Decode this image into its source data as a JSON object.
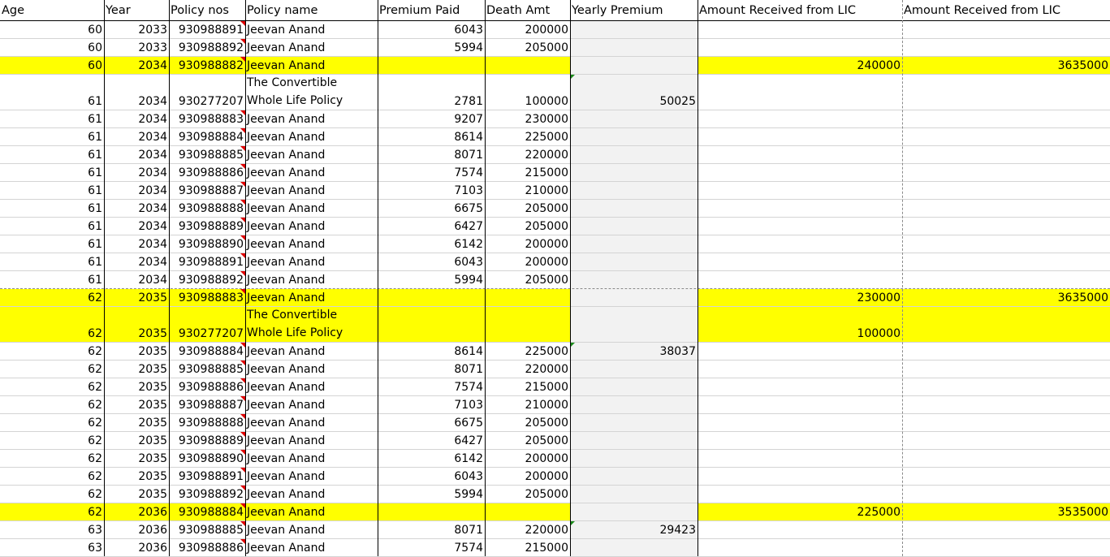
{
  "headers": [
    "Age",
    "Year",
    "Policy nos",
    "Policy name",
    "Premium Paid",
    "Death Amt",
    "Yearly Premium",
    "Amount Received from LIC",
    "Amount Received from LIC"
  ],
  "rows": [
    {
      "age": "60",
      "year": "2033",
      "policy": "930988891",
      "name": "Jeevan Anand",
      "premium": "6043",
      "death": "200000",
      "yearly": "",
      "rec1": "",
      "rec2": "",
      "highlight": false,
      "comment": true
    },
    {
      "age": "60",
      "year": "2033",
      "policy": "930988892",
      "name": "Jeevan Anand",
      "premium": "5994",
      "death": "205000",
      "yearly": "",
      "rec1": "",
      "rec2": "",
      "highlight": false,
      "comment": true
    },
    {
      "age": "60",
      "year": "2034",
      "policy": "930988882",
      "name": "Jeevan Anand",
      "premium": "",
      "death": "",
      "yearly": "",
      "rec1": "240000",
      "rec2": "3635000",
      "highlight": true,
      "comment": true
    },
    {
      "age": "61",
      "year": "2034",
      "policy": "930277207",
      "name": "The Convertible Whole Life Policy",
      "premium": "2781",
      "death": "100000",
      "yearly": "50025",
      "rec1": "",
      "rec2": "",
      "highlight": false,
      "comment": false,
      "tall": true,
      "err": true
    },
    {
      "age": "61",
      "year": "2034",
      "policy": "930988883",
      "name": "Jeevan Anand",
      "premium": "9207",
      "death": "230000",
      "yearly": "",
      "rec1": "",
      "rec2": "",
      "highlight": false,
      "comment": true
    },
    {
      "age": "61",
      "year": "2034",
      "policy": "930988884",
      "name": "Jeevan Anand",
      "premium": "8614",
      "death": "225000",
      "yearly": "",
      "rec1": "",
      "rec2": "",
      "highlight": false,
      "comment": true
    },
    {
      "age": "61",
      "year": "2034",
      "policy": "930988885",
      "name": "Jeevan Anand",
      "premium": "8071",
      "death": "220000",
      "yearly": "",
      "rec1": "",
      "rec2": "",
      "highlight": false,
      "comment": true
    },
    {
      "age": "61",
      "year": "2034",
      "policy": "930988886",
      "name": "Jeevan Anand",
      "premium": "7574",
      "death": "215000",
      "yearly": "",
      "rec1": "",
      "rec2": "",
      "highlight": false,
      "comment": true
    },
    {
      "age": "61",
      "year": "2034",
      "policy": "930988887",
      "name": "Jeevan Anand",
      "premium": "7103",
      "death": "210000",
      "yearly": "",
      "rec1": "",
      "rec2": "",
      "highlight": false,
      "comment": true
    },
    {
      "age": "61",
      "year": "2034",
      "policy": "930988888",
      "name": "Jeevan Anand",
      "premium": "6675",
      "death": "205000",
      "yearly": "",
      "rec1": "",
      "rec2": "",
      "highlight": false,
      "comment": true
    },
    {
      "age": "61",
      "year": "2034",
      "policy": "930988889",
      "name": "Jeevan Anand",
      "premium": "6427",
      "death": "205000",
      "yearly": "",
      "rec1": "",
      "rec2": "",
      "highlight": false,
      "comment": true
    },
    {
      "age": "61",
      "year": "2034",
      "policy": "930988890",
      "name": "Jeevan Anand",
      "premium": "6142",
      "death": "200000",
      "yearly": "",
      "rec1": "",
      "rec2": "",
      "highlight": false,
      "comment": true
    },
    {
      "age": "61",
      "year": "2034",
      "policy": "930988891",
      "name": "Jeevan Anand",
      "premium": "6043",
      "death": "200000",
      "yearly": "",
      "rec1": "",
      "rec2": "",
      "highlight": false,
      "comment": true
    },
    {
      "age": "61",
      "year": "2034",
      "policy": "930988892",
      "name": "Jeevan Anand",
      "premium": "5994",
      "death": "205000",
      "yearly": "",
      "rec1": "",
      "rec2": "",
      "highlight": false,
      "comment": true,
      "dashed": true
    },
    {
      "age": "62",
      "year": "2035",
      "policy": "930988883",
      "name": "Jeevan Anand",
      "premium": "",
      "death": "",
      "yearly": "",
      "rec1": "230000",
      "rec2": "3635000",
      "highlight": true,
      "comment": true
    },
    {
      "age": "62",
      "year": "2035",
      "policy": "930277207",
      "name": "The Convertible Whole Life Policy",
      "premium": "",
      "death": "",
      "yearly": "",
      "rec1": "100000",
      "rec2": "",
      "highlight": true,
      "comment": false,
      "tall": true
    },
    {
      "age": "62",
      "year": "2035",
      "policy": "930988884",
      "name": "Jeevan Anand",
      "premium": "8614",
      "death": "225000",
      "yearly": "38037",
      "rec1": "",
      "rec2": "",
      "highlight": false,
      "comment": true,
      "err": true
    },
    {
      "age": "62",
      "year": "2035",
      "policy": "930988885",
      "name": "Jeevan Anand",
      "premium": "8071",
      "death": "220000",
      "yearly": "",
      "rec1": "",
      "rec2": "",
      "highlight": false,
      "comment": true
    },
    {
      "age": "62",
      "year": "2035",
      "policy": "930988886",
      "name": "Jeevan Anand",
      "premium": "7574",
      "death": "215000",
      "yearly": "",
      "rec1": "",
      "rec2": "",
      "highlight": false,
      "comment": true
    },
    {
      "age": "62",
      "year": "2035",
      "policy": "930988887",
      "name": "Jeevan Anand",
      "premium": "7103",
      "death": "210000",
      "yearly": "",
      "rec1": "",
      "rec2": "",
      "highlight": false,
      "comment": true
    },
    {
      "age": "62",
      "year": "2035",
      "policy": "930988888",
      "name": "Jeevan Anand",
      "premium": "6675",
      "death": "205000",
      "yearly": "",
      "rec1": "",
      "rec2": "",
      "highlight": false,
      "comment": true
    },
    {
      "age": "62",
      "year": "2035",
      "policy": "930988889",
      "name": "Jeevan Anand",
      "premium": "6427",
      "death": "205000",
      "yearly": "",
      "rec1": "",
      "rec2": "",
      "highlight": false,
      "comment": true
    },
    {
      "age": "62",
      "year": "2035",
      "policy": "930988890",
      "name": "Jeevan Anand",
      "premium": "6142",
      "death": "200000",
      "yearly": "",
      "rec1": "",
      "rec2": "",
      "highlight": false,
      "comment": true
    },
    {
      "age": "62",
      "year": "2035",
      "policy": "930988891",
      "name": "Jeevan Anand",
      "premium": "6043",
      "death": "200000",
      "yearly": "",
      "rec1": "",
      "rec2": "",
      "highlight": false,
      "comment": true
    },
    {
      "age": "62",
      "year": "2035",
      "policy": "930988892",
      "name": "Jeevan Anand",
      "premium": "5994",
      "death": "205000",
      "yearly": "",
      "rec1": "",
      "rec2": "",
      "highlight": false,
      "comment": true
    },
    {
      "age": "62",
      "year": "2036",
      "policy": "930988884",
      "name": "Jeevan Anand",
      "premium": "",
      "death": "",
      "yearly": "",
      "rec1": "225000",
      "rec2": "3535000",
      "highlight": true,
      "comment": true
    },
    {
      "age": "63",
      "year": "2036",
      "policy": "930988885",
      "name": "Jeevan Anand",
      "premium": "8071",
      "death": "220000",
      "yearly": "29423",
      "rec1": "",
      "rec2": "",
      "highlight": false,
      "comment": true,
      "err": true
    },
    {
      "age": "63",
      "year": "2036",
      "policy": "930988886",
      "name": "Jeevan Anand",
      "premium": "7574",
      "death": "215000",
      "yearly": "",
      "rec1": "",
      "rec2": "",
      "highlight": false,
      "comment": true
    }
  ]
}
